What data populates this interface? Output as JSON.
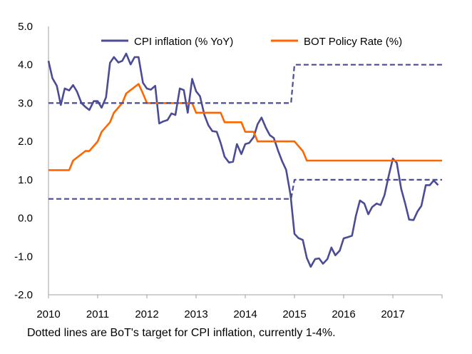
{
  "chart_data": {
    "type": "line",
    "title": "",
    "xlabel": "",
    "ylabel": "",
    "ylim": [
      -2.0,
      5.0
    ],
    "xlim": [
      2010,
      2018
    ],
    "y_ticks": [
      "5.0",
      "4.0",
      "3.0",
      "2.0",
      "1.0",
      "0.0",
      "-1.0",
      "-2.0"
    ],
    "x_ticks": [
      "2010",
      "2011",
      "2012",
      "2013",
      "2014",
      "2015",
      "2016",
      "2017"
    ],
    "legend": {
      "position": "top",
      "entries": [
        "CPI inflation (% YoY)",
        "BOT Policy Rate (%)"
      ]
    },
    "colors": {
      "cpi": "#4b4b96",
      "policy": "#ff6600",
      "target": "#4b4b96",
      "axis": "#a0a0a0"
    },
    "series": [
      {
        "name": "CPI inflation (% YoY)",
        "style": "solid",
        "x": [
          2010.0,
          2010.08,
          2010.17,
          2010.25,
          2010.33,
          2010.42,
          2010.5,
          2010.58,
          2010.67,
          2010.75,
          2010.83,
          2010.92,
          2011.0,
          2011.08,
          2011.17,
          2011.25,
          2011.33,
          2011.42,
          2011.5,
          2011.58,
          2011.67,
          2011.75,
          2011.83,
          2011.92,
          2012.0,
          2012.08,
          2012.17,
          2012.25,
          2012.33,
          2012.42,
          2012.5,
          2012.58,
          2012.67,
          2012.75,
          2012.83,
          2012.92,
          2013.0,
          2013.08,
          2013.17,
          2013.25,
          2013.33,
          2013.42,
          2013.5,
          2013.58,
          2013.67,
          2013.75,
          2013.83,
          2013.92,
          2014.0,
          2014.08,
          2014.17,
          2014.25,
          2014.33,
          2014.42,
          2014.5,
          2014.58,
          2014.67,
          2014.75,
          2014.83,
          2014.92,
          2015.0,
          2015.08,
          2015.17,
          2015.25,
          2015.33,
          2015.42,
          2015.5,
          2015.58,
          2015.67,
          2015.75,
          2015.83,
          2015.92,
          2016.0,
          2016.08,
          2016.17,
          2016.25,
          2016.33,
          2016.42,
          2016.5,
          2016.58,
          2016.67,
          2016.75,
          2016.83,
          2016.92,
          2017.0,
          2017.08,
          2017.17,
          2017.25,
          2017.33,
          2017.42,
          2017.5,
          2017.58,
          2017.67,
          2017.75,
          2017.83,
          2017.92
        ],
        "values": [
          4.1,
          3.65,
          3.45,
          2.95,
          3.38,
          3.33,
          3.47,
          3.3,
          3.0,
          2.9,
          2.82,
          3.05,
          3.05,
          2.88,
          3.15,
          4.05,
          4.2,
          4.06,
          4.1,
          4.29,
          4.01,
          4.2,
          4.2,
          3.53,
          3.38,
          3.35,
          3.45,
          2.47,
          2.52,
          2.56,
          2.73,
          2.69,
          3.38,
          3.34,
          2.75,
          3.63,
          3.31,
          3.18,
          2.69,
          2.42,
          2.27,
          2.25,
          1.96,
          1.6,
          1.45,
          1.47,
          1.93,
          1.67,
          1.93,
          1.96,
          2.11,
          2.45,
          2.62,
          2.35,
          2.16,
          2.09,
          1.75,
          1.48,
          1.26,
          0.6,
          -0.41,
          -0.52,
          -0.57,
          -1.04,
          -1.27,
          -1.07,
          -1.05,
          -1.19,
          -1.07,
          -0.77,
          -0.97,
          -0.85,
          -0.53,
          -0.5,
          -0.46,
          0.07,
          0.46,
          0.38,
          0.1,
          0.29,
          0.38,
          0.34,
          0.6,
          1.13,
          1.55,
          1.44,
          0.76,
          0.38,
          -0.04,
          -0.05,
          0.17,
          0.32,
          0.86,
          0.86,
          0.98,
          0.86
        ]
      },
      {
        "name": "BOT Policy Rate (%)",
        "style": "solid",
        "x": [
          2010.0,
          2010.42,
          2010.5,
          2010.75,
          2010.83,
          2011.0,
          2011.08,
          2011.25,
          2011.33,
          2011.5,
          2011.58,
          2011.83,
          2011.92,
          2012.0,
          2012.92,
          2013.0,
          2013.5,
          2013.58,
          2013.92,
          2014.0,
          2014.17,
          2014.25,
          2015.0,
          2015.17,
          2015.25,
          2018.0
        ],
        "values": [
          1.25,
          1.25,
          1.5,
          1.75,
          1.75,
          2.0,
          2.25,
          2.5,
          2.75,
          3.0,
          3.25,
          3.5,
          3.25,
          3.0,
          3.0,
          2.75,
          2.75,
          2.5,
          2.5,
          2.25,
          2.25,
          2.0,
          2.0,
          1.75,
          1.5,
          1.5
        ]
      },
      {
        "name": "Target upper band",
        "style": "dashed",
        "x": [
          2010.0,
          2014.93,
          2015.0,
          2018.0
        ],
        "values": [
          3.0,
          3.0,
          4.0,
          4.0
        ]
      },
      {
        "name": "Target lower band",
        "style": "dashed",
        "x": [
          2010.0,
          2014.93,
          2015.0,
          2018.0
        ],
        "values": [
          0.5,
          0.5,
          1.0,
          1.0
        ]
      }
    ],
    "annotation": "Dotted lines are BoT's target for CPI inflation, currently 1-4%."
  }
}
